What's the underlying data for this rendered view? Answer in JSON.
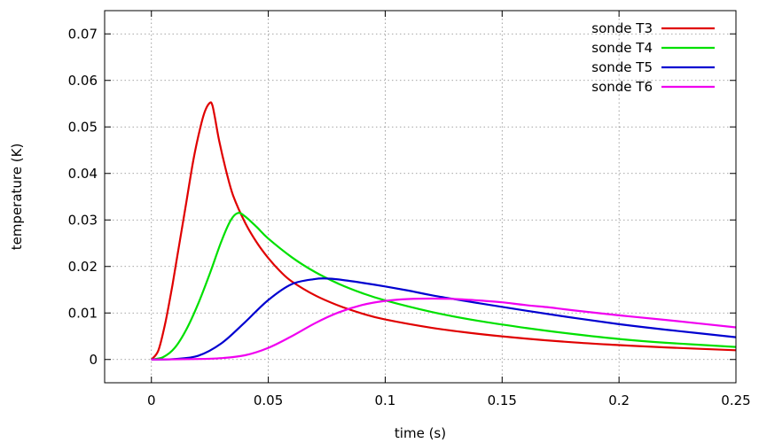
{
  "chart_data": {
    "type": "line",
    "title": "",
    "xlabel": "time (s)",
    "ylabel": "temperature (K)",
    "xlim": [
      -0.02,
      0.25
    ],
    "ylim": [
      -0.005,
      0.075
    ],
    "x_ticks": [
      0,
      0.05,
      0.1,
      0.15,
      0.2,
      0.25
    ],
    "x_tick_labels": [
      "0",
      "0.05",
      "0.1",
      "0.15",
      "0.2",
      "0.25"
    ],
    "y_ticks": [
      0,
      0.01,
      0.02,
      0.03,
      0.04,
      0.05,
      0.06,
      0.07
    ],
    "y_tick_labels": [
      "0",
      "0.01",
      "0.02",
      "0.03",
      "0.04",
      "0.05",
      "0.06",
      "0.07"
    ],
    "grid": true,
    "legend_position": "top-right",
    "series": [
      {
        "name": "sonde T3",
        "color": "#e00000",
        "x": [
          0,
          0.003,
          0.006,
          0.009,
          0.012,
          0.015,
          0.018,
          0.021,
          0.023,
          0.025,
          0.026,
          0.027,
          0.029,
          0.032,
          0.035,
          0.04,
          0.045,
          0.05,
          0.055,
          0.06,
          0.07,
          0.08,
          0.09,
          0.1,
          0.12,
          0.14,
          0.16,
          0.18,
          0.2,
          0.22,
          0.25
        ],
        "y": [
          0,
          0.002,
          0.008,
          0.016,
          0.025,
          0.034,
          0.043,
          0.05,
          0.0535,
          0.0552,
          0.0548,
          0.0525,
          0.047,
          0.0405,
          0.0352,
          0.0295,
          0.0252,
          0.0218,
          0.019,
          0.0168,
          0.0138,
          0.0116,
          0.0099,
          0.0086,
          0.0068,
          0.0055,
          0.0045,
          0.0037,
          0.0031,
          0.0026,
          0.002
        ]
      },
      {
        "name": "sonde T4",
        "color": "#00e000",
        "x": [
          0,
          0.005,
          0.01,
          0.015,
          0.02,
          0.025,
          0.03,
          0.034,
          0.037,
          0.04,
          0.045,
          0.05,
          0.06,
          0.07,
          0.08,
          0.09,
          0.1,
          0.12,
          0.14,
          0.16,
          0.18,
          0.2,
          0.22,
          0.25
        ],
        "y": [
          0,
          0.0005,
          0.0025,
          0.0065,
          0.012,
          0.0185,
          0.0255,
          0.03,
          0.0315,
          0.0308,
          0.0285,
          0.026,
          0.022,
          0.0188,
          0.0163,
          0.0143,
          0.0127,
          0.0102,
          0.0083,
          0.0068,
          0.0055,
          0.0044,
          0.0036,
          0.0027
        ]
      },
      {
        "name": "sonde T5",
        "color": "#0000d0",
        "x": [
          0,
          0.01,
          0.02,
          0.03,
          0.04,
          0.05,
          0.06,
          0.07,
          0.075,
          0.08,
          0.09,
          0.1,
          0.11,
          0.12,
          0.14,
          0.16,
          0.18,
          0.2,
          0.22,
          0.25
        ],
        "y": [
          0,
          0.0001,
          0.0008,
          0.0035,
          0.008,
          0.0128,
          0.0162,
          0.0173,
          0.0174,
          0.0172,
          0.0165,
          0.0157,
          0.0148,
          0.0138,
          0.0121,
          0.0105,
          0.009,
          0.0076,
          0.0064,
          0.0048
        ]
      },
      {
        "name": "sonde T6",
        "color": "#f000f0",
        "x": [
          0,
          0.02,
          0.03,
          0.04,
          0.05,
          0.06,
          0.07,
          0.08,
          0.09,
          0.1,
          0.11,
          0.12,
          0.13,
          0.14,
          0.15,
          0.16,
          0.17,
          0.18,
          0.2,
          0.22,
          0.25
        ],
        "y": [
          0,
          0.0001,
          0.0003,
          0.0009,
          0.0025,
          0.005,
          0.0078,
          0.0101,
          0.0117,
          0.0126,
          0.013,
          0.0131,
          0.013,
          0.0127,
          0.0123,
          0.0117,
          0.0112,
          0.0106,
          0.0095,
          0.0085,
          0.0069
        ]
      }
    ]
  }
}
